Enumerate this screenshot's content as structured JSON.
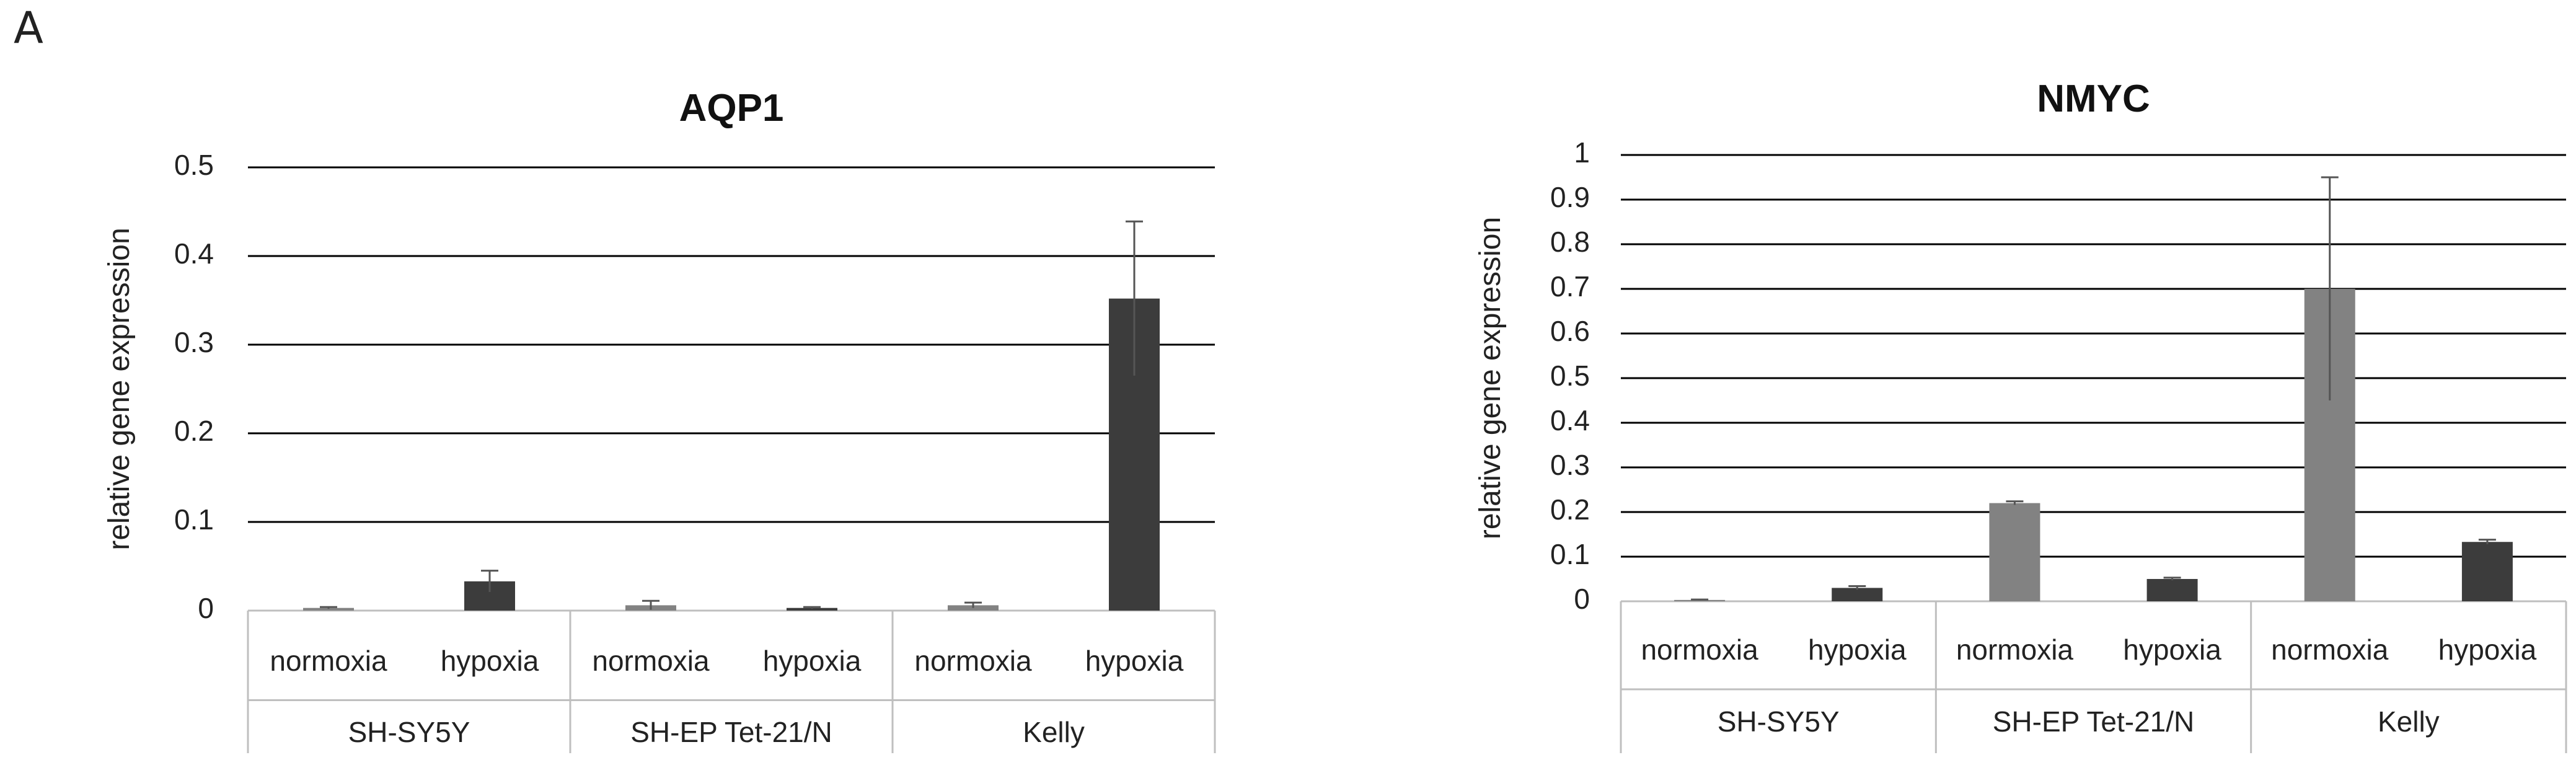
{
  "panel_letter": "A",
  "colors": {
    "normoxia": "#828282",
    "hypoxia": "#3c3c3c",
    "grid": "#000000",
    "axis": "#bfbfbf",
    "error": "#555555"
  },
  "chart_data": [
    {
      "type": "bar",
      "title": "AQP1",
      "ylabel": "relative gene expression",
      "xlabel": "",
      "ylim": [
        0,
        0.5
      ],
      "yticks": [
        "0",
        "0.1",
        "0.2",
        "0.3",
        "0.4",
        "0.5"
      ],
      "grid": true,
      "groups": [
        "SH-SY5Y",
        "SH-EP Tet-21/N",
        "Kelly"
      ],
      "conditions": [
        "normoxia",
        "hypoxia"
      ],
      "values": [
        [
          0.003,
          0.033
        ],
        [
          0.006,
          0.003
        ],
        [
          0.006,
          0.352
        ]
      ],
      "errors": [
        [
          0.001,
          0.012
        ],
        [
          0.005,
          0.001
        ],
        [
          0.003,
          0.087
        ]
      ]
    },
    {
      "type": "bar",
      "title": "NMYC",
      "ylabel": "relative gene expression",
      "xlabel": "",
      "ylim": [
        0,
        1
      ],
      "yticks": [
        "0",
        "0.1",
        "0.2",
        "0.3",
        "0.4",
        "0.5",
        "0.6",
        "0.7",
        "0.8",
        "0.9",
        "1"
      ],
      "grid": true,
      "groups": [
        "SH-SY5Y",
        "SH-EP Tet-21/N",
        "Kelly"
      ],
      "conditions": [
        "normoxia",
        "hypoxia"
      ],
      "values": [
        [
          0.003,
          0.03
        ],
        [
          0.22,
          0.05
        ],
        [
          0.7,
          0.133
        ]
      ],
      "errors": [
        [
          0.001,
          0.004
        ],
        [
          0.004,
          0.003
        ],
        [
          0.25,
          0.005
        ]
      ]
    }
  ]
}
